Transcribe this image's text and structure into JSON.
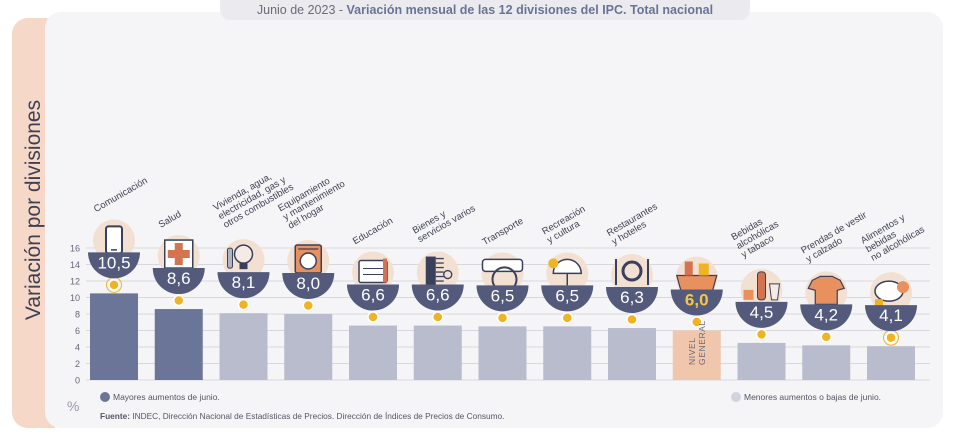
{
  "header": {
    "date": "Junio de 2023",
    "separator": " - ",
    "title": "Variación mensual de las 12 divisiones del IPC. Total nacional"
  },
  "chart_data": {
    "type": "bar",
    "title": "Variación mensual de las 12 divisiones del IPC. Total nacional",
    "ylabel": "Variación por divisiones",
    "unit": "%",
    "ylim": [
      0,
      16
    ],
    "yticks": [
      0,
      2,
      4,
      6,
      8,
      10,
      12,
      14,
      16
    ],
    "grid": true,
    "categories": [
      "Comunicación",
      "Salud",
      "Vivienda, agua, electricidad, gas y otros combustibles",
      "Equipamiento y mantenimiento del hogar",
      "Educación",
      "Bienes y servicios varios",
      "Transporte",
      "Recreación y cultura",
      "Restaurantes y hoteles",
      "Nivel general",
      "Bebidas alcohólicas y tabaco",
      "Prendas de vestir y calzado",
      "Alimentos y bebidas no alcohólicas"
    ],
    "category_lines": [
      [
        "Comunicación"
      ],
      [
        "Salud"
      ],
      [
        "Vivienda, agua,",
        "electricidad, gas y",
        "otros combustibles"
      ],
      [
        "Equipamiento",
        "y mantenimiento",
        "del hogar"
      ],
      [
        "Educación"
      ],
      [
        "Bienes y",
        "servicios varios"
      ],
      [
        "Transporte"
      ],
      [
        "Recreación",
        "y cultura"
      ],
      [
        "Restaurantes",
        "y hoteles"
      ],
      [],
      [
        "Bebidas",
        "alcohólicas",
        "y tabaco"
      ],
      [
        "Prendas de vestir",
        "y calzado"
      ],
      [
        "Alimentos y",
        "bebidas",
        "no alcohólicas"
      ]
    ],
    "values": [
      10.5,
      8.6,
      8.1,
      8.0,
      6.6,
      6.6,
      6.5,
      6.5,
      6.3,
      6.0,
      4.5,
      4.2,
      4.1
    ],
    "value_labels": [
      "10,5",
      "8,6",
      "8,1",
      "8,0",
      "6,6",
      "6,6",
      "6,5",
      "6,5",
      "6,3",
      "6,0",
      "4,5",
      "4,2",
      "4,1"
    ],
    "groups": [
      "mayor",
      "mayor",
      "menor",
      "menor",
      "menor",
      "menor",
      "menor",
      "menor",
      "menor",
      "general",
      "menor",
      "menor",
      "menor"
    ],
    "general_bar_label": [
      "NIVEL",
      "GENERAL"
    ],
    "icons": [
      "phone-icon",
      "cross-icon",
      "bulb-icon",
      "washer-icon",
      "notebook-icon",
      "comb-icon",
      "bus-icon",
      "umbrella-icon",
      "cutlery-icon",
      "basket-icon",
      "bottle-icon",
      "shirt-icon",
      "chicken-icon"
    ],
    "colors": {
      "mayor": "#6b7598",
      "menor": "#b8bccd",
      "general": "#f0c6ad",
      "badge": "#535a7c",
      "dot": "#f0b323",
      "grid": "#d7d7df",
      "general_value_text": "#f6c544"
    }
  },
  "legend": {
    "mayor": "Mayores aumentos de junio.",
    "menor": "Menores aumentos o bajas de junio."
  },
  "source": {
    "label": "Fuente:",
    "text": " INDEC, Dirección Nacional de Estadísticas de Precios. Dirección de Índices de Precios de Consumo."
  }
}
